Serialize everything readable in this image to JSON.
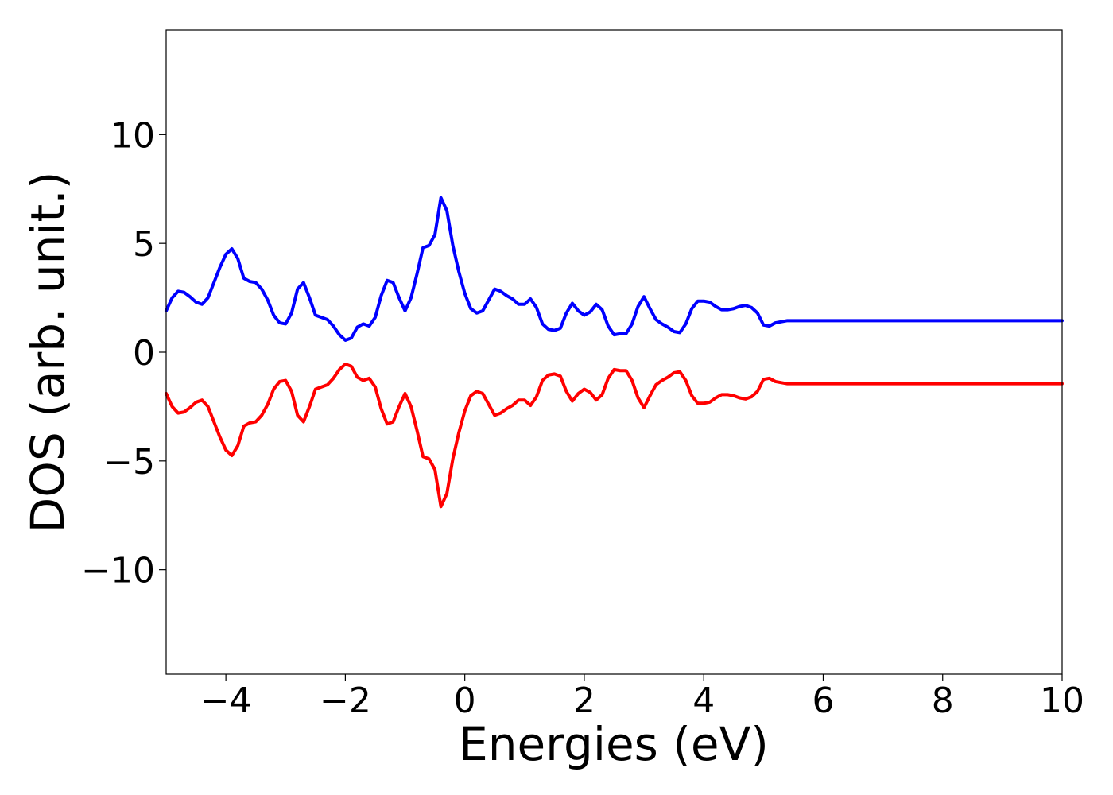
{
  "chart_data": {
    "type": "line",
    "xlabel": "Energies (eV)",
    "ylabel": "DOS (arb. unit.)",
    "xlim": [
      -5,
      10
    ],
    "ylim": [
      -14.8,
      14.8
    ],
    "xticks": [
      -4,
      -2,
      0,
      2,
      4,
      6,
      8,
      10
    ],
    "xtick_labels": [
      "−4",
      "−2",
      "0",
      "2",
      "4",
      "6",
      "8",
      "10"
    ],
    "yticks": [
      -10,
      -5,
      0,
      5,
      10
    ],
    "ytick_labels": [
      "−10",
      "−5",
      "0",
      "5",
      "10"
    ],
    "grid": false,
    "x": [
      -5.0,
      -4.9,
      -4.8,
      -4.7,
      -4.6,
      -4.5,
      -4.4,
      -4.3,
      -4.2,
      -4.1,
      -4.0,
      -3.9,
      -3.8,
      -3.7,
      -3.6,
      -3.5,
      -3.4,
      -3.3,
      -3.2,
      -3.1,
      -3.0,
      -2.9,
      -2.8,
      -2.7,
      -2.6,
      -2.5,
      -2.4,
      -2.3,
      -2.2,
      -2.1,
      -2.0,
      -1.9,
      -1.8,
      -1.7,
      -1.6,
      -1.5,
      -1.4,
      -1.3,
      -1.2,
      -1.1,
      -1.0,
      -0.9,
      -0.8,
      -0.7,
      -0.6,
      -0.5,
      -0.4,
      -0.3,
      -0.2,
      -0.1,
      0.0,
      0.1,
      0.2,
      0.3,
      0.4,
      0.5,
      0.6,
      0.7,
      0.8,
      0.9,
      1.0,
      1.1,
      1.2,
      1.3,
      1.4,
      1.5,
      1.6,
      1.7,
      1.8,
      1.9,
      2.0,
      2.1,
      2.2,
      2.3,
      2.4,
      2.5,
      2.6,
      2.7,
      2.8,
      2.9,
      3.0,
      3.1,
      3.2,
      3.3,
      3.4,
      3.5,
      3.6,
      3.7,
      3.8,
      3.9,
      4.0,
      4.1,
      4.2,
      4.3,
      4.4,
      4.5,
      4.6,
      4.7,
      4.8,
      4.9,
      5.0,
      5.1,
      5.2,
      5.3,
      5.4,
      5.5,
      5.6,
      5.7,
      5.8,
      5.9,
      6.0,
      6.1,
      6.2,
      6.3,
      6.4,
      6.5,
      6.6,
      6.7,
      6.8,
      6.9,
      7.0,
      7.1,
      7.2,
      7.3,
      7.4,
      7.5,
      7.6,
      7.7,
      7.8,
      7.9,
      8.0,
      8.1,
      8.2,
      8.3,
      8.4,
      8.5,
      8.6,
      8.7,
      8.8,
      8.9,
      9.0,
      9.1,
      9.2,
      9.3,
      9.4,
      9.5,
      9.6,
      9.7,
      9.8,
      9.9,
      10.0
    ],
    "series": [
      {
        "color": "#0000ff",
        "values": [
          1.9,
          2.5,
          2.8,
          2.75,
          2.55,
          2.3,
          2.2,
          2.5,
          3.2,
          3.9,
          4.5,
          4.75,
          4.3,
          3.4,
          3.25,
          3.2,
          2.9,
          2.4,
          1.7,
          1.35,
          1.3,
          1.8,
          2.9,
          3.2,
          2.5,
          1.7,
          1.6,
          1.5,
          1.2,
          0.8,
          0.55,
          0.65,
          1.15,
          1.3,
          1.2,
          1.6,
          2.6,
          3.3,
          3.2,
          2.5,
          1.9,
          2.5,
          3.6,
          4.8,
          4.9,
          5.4,
          7.1,
          6.5,
          4.9,
          3.7,
          2.7,
          2.0,
          1.8,
          1.9,
          2.4,
          2.9,
          2.8,
          2.6,
          2.45,
          2.2,
          2.2,
          2.45,
          2.05,
          1.3,
          1.05,
          1.0,
          1.1,
          1.8,
          2.25,
          1.9,
          1.7,
          1.85,
          2.2,
          1.95,
          1.2,
          0.8,
          0.85,
          0.85,
          1.3,
          2.1,
          2.55,
          2.0,
          1.5,
          1.3,
          1.15,
          0.95,
          0.9,
          1.3,
          2.0,
          2.35,
          2.35,
          2.3,
          2.1,
          1.95,
          1.95,
          2.0,
          2.1,
          2.15,
          2.05,
          1.8,
          1.25,
          1.2,
          1.35,
          1.4,
          1.45,
          1.45,
          1.45,
          1.45,
          1.45,
          1.45,
          1.45,
          1.45,
          1.45,
          1.45,
          1.45,
          1.45,
          1.45,
          1.45,
          1.45,
          1.45,
          1.45,
          1.45,
          1.45,
          1.45,
          1.45,
          1.45,
          1.45,
          1.45,
          1.45,
          1.45,
          1.45,
          1.45,
          1.45,
          1.45,
          1.45,
          1.45,
          1.45,
          1.45,
          1.45,
          1.45,
          1.45,
          1.45,
          1.45,
          1.45,
          1.45,
          1.45,
          1.45,
          1.45,
          1.45,
          1.45,
          1.45
        ]
      },
      {
        "color": "#ff0000",
        "values": [
          -1.9,
          -2.5,
          -2.8,
          -2.75,
          -2.55,
          -2.3,
          -2.2,
          -2.5,
          -3.2,
          -3.9,
          -4.5,
          -4.75,
          -4.3,
          -3.4,
          -3.25,
          -3.2,
          -2.9,
          -2.4,
          -1.7,
          -1.35,
          -1.3,
          -1.8,
          -2.9,
          -3.2,
          -2.5,
          -1.7,
          -1.6,
          -1.5,
          -1.2,
          -0.8,
          -0.55,
          -0.65,
          -1.15,
          -1.3,
          -1.2,
          -1.6,
          -2.6,
          -3.3,
          -3.2,
          -2.5,
          -1.9,
          -2.5,
          -3.6,
          -4.8,
          -4.9,
          -5.4,
          -7.1,
          -6.5,
          -4.9,
          -3.7,
          -2.7,
          -2.0,
          -1.8,
          -1.9,
          -2.4,
          -2.9,
          -2.8,
          -2.6,
          -2.45,
          -2.2,
          -2.2,
          -2.45,
          -2.05,
          -1.3,
          -1.05,
          -1.0,
          -1.1,
          -1.8,
          -2.25,
          -1.9,
          -1.7,
          -1.85,
          -2.2,
          -1.95,
          -1.2,
          -0.8,
          -0.85,
          -0.85,
          -1.3,
          -2.1,
          -2.55,
          -2.0,
          -1.5,
          -1.3,
          -1.15,
          -0.95,
          -0.9,
          -1.3,
          -2.0,
          -2.35,
          -2.35,
          -2.3,
          -2.1,
          -1.95,
          -1.95,
          -2.0,
          -2.1,
          -2.15,
          -2.05,
          -1.8,
          -1.25,
          -1.2,
          -1.35,
          -1.4,
          -1.45,
          -1.45,
          -1.45,
          -1.45,
          -1.45,
          -1.45,
          -1.45,
          -1.45,
          -1.45,
          -1.45,
          -1.45,
          -1.45,
          -1.45,
          -1.45,
          -1.45,
          -1.45,
          -1.45,
          -1.45,
          -1.45,
          -1.45,
          -1.45,
          -1.45,
          -1.45,
          -1.45,
          -1.45,
          -1.45,
          -1.45,
          -1.45,
          -1.45,
          -1.45,
          -1.45,
          -1.45,
          -1.45,
          -1.45,
          -1.45,
          -1.45,
          -1.45,
          -1.45,
          -1.45,
          -1.45,
          -1.45,
          -1.45,
          -1.45,
          -1.45,
          -1.45,
          -1.45,
          -1.45
        ]
      }
    ]
  }
}
